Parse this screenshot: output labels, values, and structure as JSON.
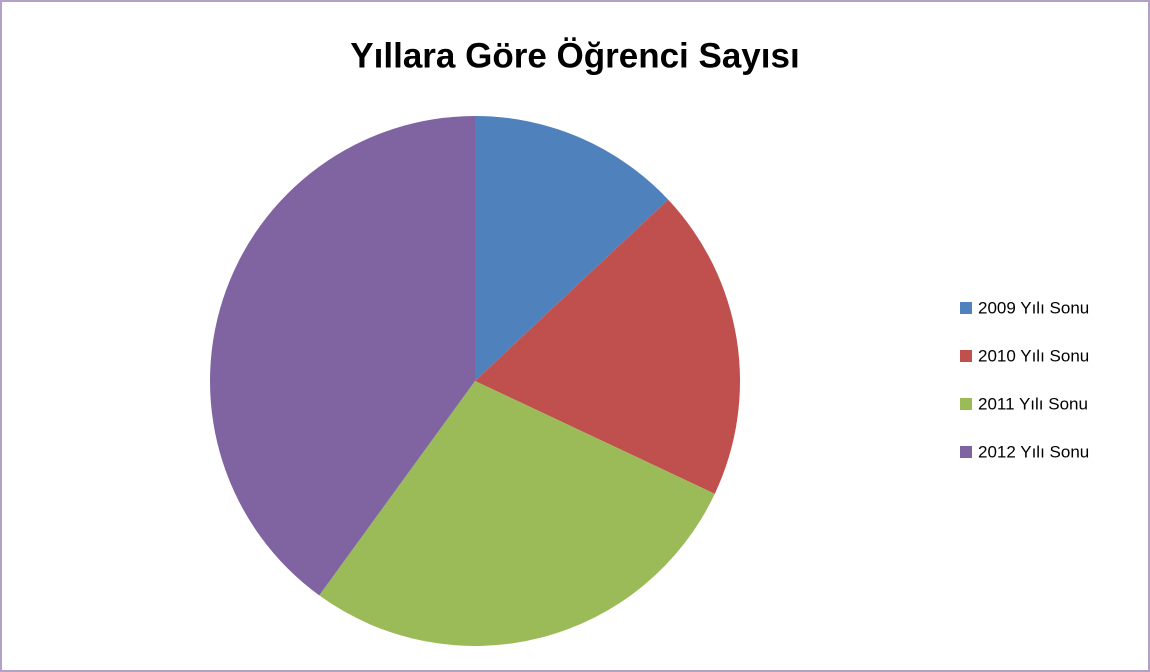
{
  "chart_data": {
    "type": "pie",
    "title": "Yıllara Göre Öğrenci Sayısı",
    "categories": [
      "2009 Yılı Sonu",
      "2010 Yılı Sonu",
      "2011 Yılı Sonu",
      "2012 Yılı Sonu"
    ],
    "values": [
      13,
      19,
      28,
      40
    ],
    "colors": [
      "#4f81bd",
      "#c0504d",
      "#9bbb59",
      "#8064a2"
    ],
    "legend": "right"
  }
}
